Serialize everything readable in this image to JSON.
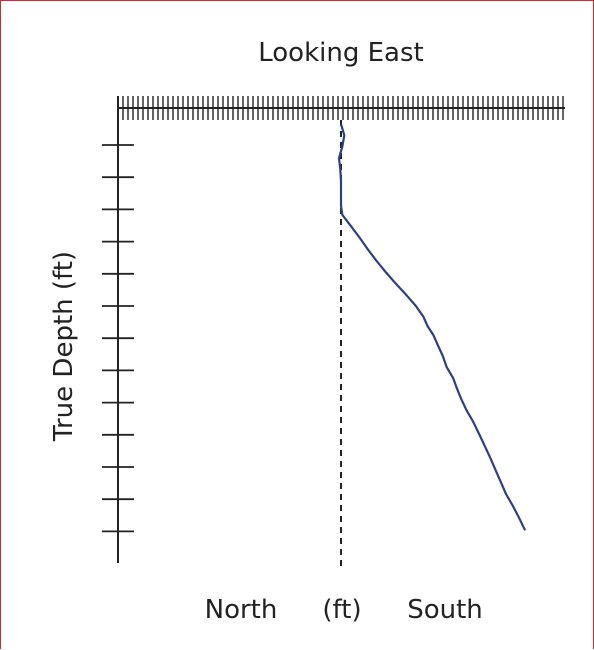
{
  "chart_data": {
    "type": "line",
    "title": "Looking East",
    "xlabel": {
      "left": "North",
      "center": "(ft)",
      "right": "South"
    },
    "ylabel": "True Depth (ft)",
    "y_inverted": true,
    "grid": false,
    "reference_line": {
      "style": "dashed",
      "x": 0
    },
    "series": [
      {
        "color": "#2e3f86",
        "points": [
          [
            0.0,
            0.0
          ],
          [
            0.5,
            0.5
          ],
          [
            0.2,
            1.0
          ],
          [
            -0.3,
            1.5
          ],
          [
            -0.1,
            2.0
          ],
          [
            0.0,
            2.5
          ],
          [
            0.0,
            3.0
          ],
          [
            0.0,
            3.6
          ],
          [
            0.2,
            4.0
          ],
          [
            1.5,
            4.5
          ],
          [
            2.8,
            5.0
          ],
          [
            4.0,
            5.5
          ],
          [
            5.3,
            6.0
          ],
          [
            6.7,
            6.5
          ],
          [
            8.2,
            7.0
          ],
          [
            9.8,
            7.5
          ],
          [
            11.3,
            8.0
          ],
          [
            12.5,
            8.5
          ],
          [
            13.1,
            8.9
          ],
          [
            14.0,
            9.3
          ],
          [
            14.6,
            9.7
          ],
          [
            15.4,
            10.2
          ],
          [
            16.0,
            10.7
          ],
          [
            17.0,
            11.2
          ],
          [
            17.5,
            11.6
          ],
          [
            18.2,
            12.1
          ],
          [
            19.0,
            12.6
          ],
          [
            20.0,
            13.1
          ],
          [
            21.0,
            13.7
          ],
          [
            21.8,
            14.2
          ],
          [
            22.6,
            14.7
          ],
          [
            23.5,
            15.3
          ],
          [
            24.1,
            15.7
          ],
          [
            25.0,
            16.3
          ],
          [
            26.0,
            16.8
          ],
          [
            26.9,
            17.3
          ],
          [
            27.9,
            17.9
          ]
        ]
      }
    ],
    "colors": {
      "frame_border": "#d9262c",
      "axis": "#222222",
      "series": "#2e3f86"
    }
  }
}
